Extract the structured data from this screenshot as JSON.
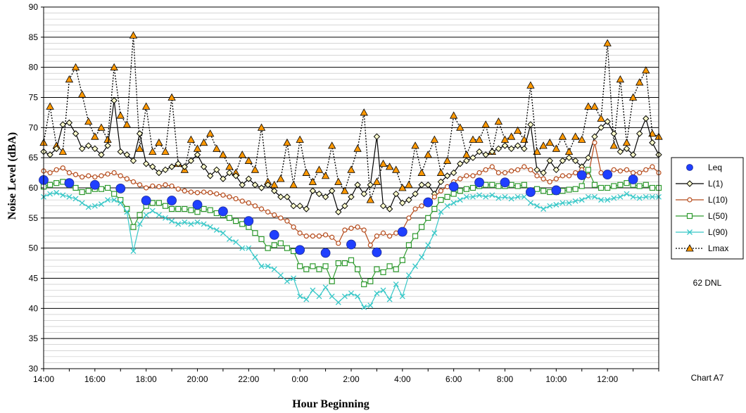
{
  "chart_data": {
    "type": "line",
    "xlabel": "Hour Beginning",
    "ylabel": "Noise Level (dBA)",
    "ylim": [
      30,
      90
    ],
    "x_hours_range": [
      0,
      24
    ],
    "x_tick_labels": [
      "14:00",
      "16:00",
      "18:00",
      "20:00",
      "22:00",
      "0:00",
      "2:00",
      "4:00",
      "6:00",
      "8:00",
      "10:00",
      "12:00"
    ],
    "y_tick_labels": [
      "30",
      "35",
      "40",
      "45",
      "50",
      "55",
      "60",
      "65",
      "70",
      "75",
      "80",
      "85",
      "90"
    ],
    "grid": "horizontal major and minor lines",
    "legend_position": "right",
    "annotation_dnl": "62 DNL",
    "chart_label": "Chart A7",
    "series": [
      {
        "name": "Leq",
        "color": "#1f3fff",
        "marker": "circle",
        "line": "none",
        "x_hours": [
          0,
          1,
          2,
          3,
          4,
          5,
          6,
          7,
          8,
          9,
          10,
          11,
          12,
          13,
          14,
          15,
          16,
          17,
          18,
          19,
          20,
          21,
          22,
          23
        ],
        "values": [
          61.3,
          60.8,
          60.5,
          59.9,
          57.9,
          57.9,
          57.2,
          56.1,
          54.5,
          52.2,
          49.7,
          49.2,
          50.6,
          49.3,
          52.7,
          57.6,
          60.2,
          60.9,
          60.9,
          59.3,
          59.6,
          62.1,
          62.2,
          61.4
        ]
      },
      {
        "name": "L(1)",
        "color": "#000000",
        "marker": "diamond",
        "marker_fill": "#ffffcc",
        "line": "solid",
        "x_hours": [
          0,
          0.25,
          0.5,
          0.75,
          1,
          1.25,
          1.5,
          1.75,
          2,
          2.25,
          2.5,
          2.75,
          3,
          3.25,
          3.5,
          3.75,
          4,
          4.25,
          4.5,
          4.75,
          5,
          5.25,
          5.5,
          5.75,
          6,
          6.25,
          6.5,
          6.75,
          7,
          7.25,
          7.5,
          7.75,
          8,
          8.25,
          8.5,
          8.75,
          9,
          9.25,
          9.5,
          9.75,
          10,
          10.25,
          10.5,
          10.75,
          11,
          11.25,
          11.5,
          11.75,
          12,
          12.25,
          12.5,
          12.75,
          13,
          13.25,
          13.5,
          13.75,
          14,
          14.25,
          14.5,
          14.75,
          15,
          15.25,
          15.5,
          15.75,
          16,
          16.25,
          16.5,
          16.75,
          17,
          17.25,
          17.5,
          17.75,
          18,
          18.25,
          18.5,
          18.75,
          19,
          19.25,
          19.5,
          19.75,
          20,
          20.25,
          20.5,
          20.75,
          21,
          21.25,
          21.5,
          21.75,
          22,
          22.25,
          22.5,
          22.75,
          23,
          23.25,
          23.5,
          23.75,
          24
        ],
        "values": [
          66,
          65.5,
          66.5,
          70.5,
          70.8,
          69,
          66.5,
          67,
          66.5,
          65.5,
          67,
          74.5,
          66,
          65.5,
          64.5,
          69,
          64,
          63.5,
          62.5,
          63,
          63.5,
          64,
          63.5,
          64.5,
          65.5,
          63.5,
          62,
          63,
          61.5,
          62.5,
          62,
          60.5,
          61.5,
          60.5,
          60,
          60.5,
          59.5,
          58.5,
          58.5,
          57,
          57,
          56.5,
          59.5,
          59,
          58.5,
          59.5,
          56,
          57,
          58.5,
          60.5,
          59,
          60.5,
          68.5,
          57,
          56.5,
          59,
          57.5,
          58,
          59,
          60.5,
          60.5,
          59,
          61,
          62,
          62.5,
          64,
          64.5,
          65,
          66,
          65.5,
          66,
          66.5,
          67,
          66.5,
          67,
          66.5,
          70.5,
          63,
          62.5,
          64.5,
          63,
          64.5,
          65,
          64.5,
          63.5,
          65,
          68.5,
          70,
          71,
          69,
          66,
          66.5,
          65.5,
          69,
          71.5,
          67.5,
          65.5
        ],
        "note": "L(1) traces are sampled approximations of the dense chart line"
      },
      {
        "name": "L(10)",
        "color": "#b54a1a",
        "marker": "circle-open",
        "line": "solid",
        "x_hours": [
          0,
          0.25,
          0.5,
          0.75,
          1,
          1.25,
          1.5,
          1.75,
          2,
          2.25,
          2.5,
          2.75,
          3,
          3.25,
          3.5,
          3.75,
          4,
          4.25,
          4.5,
          4.75,
          5,
          5.25,
          5.5,
          5.75,
          6,
          6.25,
          6.5,
          6.75,
          7,
          7.25,
          7.5,
          7.75,
          8,
          8.25,
          8.5,
          8.75,
          9,
          9.25,
          9.5,
          9.75,
          10,
          10.25,
          10.5,
          10.75,
          11,
          11.25,
          11.5,
          11.75,
          12,
          12.25,
          12.5,
          12.75,
          13,
          13.25,
          13.5,
          13.75,
          14,
          14.25,
          14.5,
          14.75,
          15,
          15.25,
          15.5,
          15.75,
          16,
          16.25,
          16.5,
          16.75,
          17,
          17.25,
          17.5,
          17.75,
          18,
          18.25,
          18.5,
          18.75,
          19,
          19.25,
          19.5,
          19.75,
          20,
          20.25,
          20.5,
          20.75,
          21,
          21.25,
          21.5,
          21.75,
          22,
          22.25,
          22.5,
          22.75,
          23,
          23.25,
          23.5,
          23.75,
          24
        ],
        "values": [
          62.8,
          62.5,
          63,
          63.3,
          62.5,
          62.2,
          61.8,
          62,
          61.8,
          62,
          62.3,
          62.5,
          62,
          61.5,
          61,
          60.5,
          60,
          60.3,
          60.2,
          60.5,
          60.3,
          59.8,
          59.5,
          59.3,
          59.2,
          59.3,
          59.2,
          59,
          58.8,
          58.5,
          58.2,
          57.8,
          57.5,
          57,
          56.5,
          56,
          55.5,
          55,
          54.5,
          53.5,
          52.5,
          52,
          52,
          52,
          52.2,
          51.8,
          50.8,
          53,
          53.3,
          53.5,
          53,
          50.5,
          52,
          52.5,
          52,
          52.5,
          53,
          55,
          56.5,
          57,
          57.5,
          58.5,
          59.5,
          60.2,
          61,
          61.5,
          62,
          62,
          62.5,
          63,
          63.5,
          62.5,
          62.5,
          62.8,
          63,
          63.5,
          63,
          62,
          61.5,
          61,
          61.5,
          62,
          62,
          62.5,
          63,
          62,
          67.5,
          62.5,
          62.5,
          63,
          62.8,
          63,
          62.5,
          62.5,
          63,
          63.5,
          62.5
        ]
      },
      {
        "name": "L(50)",
        "color": "#2e9a2e",
        "marker": "square-open",
        "line": "solid",
        "x_hours": [
          0,
          0.25,
          0.5,
          0.75,
          1,
          1.25,
          1.5,
          1.75,
          2,
          2.25,
          2.5,
          2.75,
          3,
          3.25,
          3.5,
          3.75,
          4,
          4.25,
          4.5,
          4.75,
          5,
          5.25,
          5.5,
          5.75,
          6,
          6.25,
          6.5,
          6.75,
          7,
          7.25,
          7.5,
          7.75,
          8,
          8.25,
          8.5,
          8.75,
          9,
          9.25,
          9.5,
          9.75,
          10,
          10.25,
          10.5,
          10.75,
          11,
          11.25,
          11.5,
          11.75,
          12,
          12.25,
          12.5,
          12.75,
          13,
          13.25,
          13.5,
          13.75,
          14,
          14.25,
          14.5,
          14.75,
          15,
          15.25,
          15.5,
          15.75,
          16,
          16.25,
          16.5,
          16.75,
          17,
          17.25,
          17.5,
          17.75,
          18,
          18.25,
          18.5,
          18.75,
          19,
          19.25,
          19.5,
          19.75,
          20,
          20.25,
          20.5,
          20.75,
          21,
          21.25,
          21.5,
          21.75,
          22,
          22.25,
          22.5,
          22.75,
          23,
          23.25,
          23.5,
          23.75,
          24
        ],
        "values": [
          60.2,
          60.5,
          60.8,
          61,
          60.5,
          60,
          59.3,
          59.5,
          59.8,
          59.8,
          60,
          59,
          58,
          56.5,
          53.5,
          55.5,
          57,
          57.5,
          57.5,
          57,
          56.5,
          56.5,
          56.5,
          56.3,
          56,
          56.5,
          56.3,
          55.8,
          55.5,
          55,
          54.5,
          54,
          53.5,
          52.5,
          51.5,
          50,
          50.5,
          50.8,
          50,
          49.5,
          47,
          46.5,
          47,
          46.5,
          47,
          44.5,
          47.5,
          47.5,
          48,
          46.5,
          44,
          44.5,
          46.5,
          46,
          47,
          46.5,
          48,
          50.5,
          52,
          53.5,
          55,
          56.5,
          58,
          58.5,
          59,
          59.5,
          59.8,
          60,
          60.3,
          60.5,
          60.5,
          60.3,
          60.3,
          60.5,
          60.3,
          60.5,
          59.5,
          59.8,
          59.5,
          59.3,
          59.3,
          59.5,
          59.7,
          59.8,
          60.3,
          63,
          60.5,
          60,
          60,
          60.3,
          60.5,
          60.8,
          60.5,
          60.3,
          60.5,
          60,
          60
        ]
      },
      {
        "name": "L(90)",
        "color": "#38c8c8",
        "marker": "x",
        "line": "solid",
        "x_hours": [
          0,
          0.25,
          0.5,
          0.75,
          1,
          1.25,
          1.5,
          1.75,
          2,
          2.25,
          2.5,
          2.75,
          3,
          3.25,
          3.5,
          3.75,
          4,
          4.25,
          4.5,
          4.75,
          5,
          5.25,
          5.5,
          5.75,
          6,
          6.25,
          6.5,
          6.75,
          7,
          7.25,
          7.5,
          7.75,
          8,
          8.25,
          8.5,
          8.75,
          9,
          9.25,
          9.5,
          9.75,
          10,
          10.25,
          10.5,
          10.75,
          11,
          11.25,
          11.5,
          11.75,
          12,
          12.25,
          12.5,
          12.75,
          13,
          13.25,
          13.5,
          13.75,
          14,
          14.25,
          14.5,
          14.75,
          15,
          15.25,
          15.5,
          15.75,
          16,
          16.25,
          16.5,
          16.75,
          17,
          17.25,
          17.5,
          17.75,
          18,
          18.25,
          18.5,
          18.75,
          19,
          19.25,
          19.5,
          19.75,
          20,
          20.25,
          20.5,
          20.75,
          21,
          21.25,
          21.5,
          21.75,
          22,
          22.25,
          22.5,
          22.75,
          23,
          23.25,
          23.5,
          23.75,
          24
        ],
        "values": [
          58.5,
          59,
          59.2,
          58.8,
          58.5,
          58.2,
          57.5,
          56.8,
          57,
          57.3,
          58,
          58,
          57.5,
          56,
          49.5,
          54,
          55.5,
          56.2,
          55.5,
          55,
          54.5,
          54,
          54.3,
          54,
          54.3,
          54,
          53.5,
          53,
          52.5,
          51.5,
          51,
          50,
          50,
          48.5,
          47,
          47,
          46.5,
          45.5,
          44.5,
          45,
          42,
          41.5,
          43,
          42,
          43.5,
          42,
          41,
          42,
          42.5,
          42,
          40.2,
          40.5,
          42.5,
          43,
          41.5,
          44,
          42,
          45.5,
          47,
          48.5,
          50.5,
          52.5,
          56,
          57,
          57.5,
          58,
          58.5,
          58.5,
          58.8,
          58.5,
          58.8,
          58.3,
          58.5,
          58.2,
          58.5,
          58.5,
          57.5,
          57,
          56.5,
          57,
          57.2,
          57.5,
          57.5,
          57.8,
          58,
          58.5,
          58.5,
          58,
          58,
          58.3,
          58.5,
          59,
          58.5,
          58.3,
          58.5,
          58.5,
          58.5
        ]
      },
      {
        "name": "Lmax",
        "color": "#000000",
        "marker": "triangle",
        "marker_fill": "#ff9900",
        "line": "dotted",
        "x_hours": [
          0,
          0.25,
          0.5,
          0.75,
          1,
          1.25,
          1.5,
          1.75,
          2,
          2.25,
          2.5,
          2.75,
          3,
          3.25,
          3.5,
          3.75,
          4,
          4.25,
          4.5,
          4.75,
          5,
          5.25,
          5.5,
          5.75,
          6,
          6.25,
          6.5,
          6.75,
          7,
          7.25,
          7.5,
          7.75,
          8,
          8.25,
          8.5,
          8.75,
          9,
          9.25,
          9.5,
          9.75,
          10,
          10.25,
          10.5,
          10.75,
          11,
          11.25,
          11.5,
          11.75,
          12,
          12.25,
          12.5,
          12.75,
          13,
          13.25,
          13.5,
          13.75,
          14,
          14.25,
          14.5,
          14.75,
          15,
          15.25,
          15.5,
          15.75,
          16,
          16.25,
          16.5,
          16.75,
          17,
          17.25,
          17.5,
          17.75,
          18,
          18.25,
          18.5,
          18.75,
          19,
          19.25,
          19.5,
          19.75,
          20,
          20.25,
          20.5,
          20.75,
          21,
          21.25,
          21.5,
          21.75,
          22,
          22.25,
          22.5,
          22.75,
          23,
          23.25,
          23.5,
          23.75,
          24
        ],
        "values": [
          67.5,
          73.5,
          67,
          66,
          78,
          80,
          75.5,
          71,
          68.5,
          70,
          68,
          80,
          72,
          70.5,
          85.3,
          66.5,
          73.5,
          66,
          67.5,
          66,
          75,
          64,
          63,
          68,
          66.5,
          67.5,
          69,
          66.5,
          65.5,
          63.5,
          62.5,
          65.5,
          64.5,
          63,
          70,
          61,
          60.5,
          61.5,
          67.5,
          60.5,
          68,
          62.5,
          61,
          63,
          62,
          67,
          61,
          59.5,
          63,
          66.5,
          72.5,
          58,
          61,
          64,
          63.5,
          63,
          60,
          60.5,
          67,
          62.5,
          65.5,
          68,
          62.5,
          64.5,
          72,
          70,
          65.5,
          68,
          68,
          70.5,
          66,
          71,
          68,
          68.5,
          69.5,
          68,
          77,
          66,
          67,
          67.5,
          66.5,
          68.5,
          66,
          68.5,
          68,
          73.5,
          73.5,
          71.5,
          84,
          67,
          78,
          67.5,
          75,
          77.5,
          79.5,
          69,
          68.5
        ],
        "note": "Lmax peaks approximated from the dense chart"
      }
    ]
  }
}
